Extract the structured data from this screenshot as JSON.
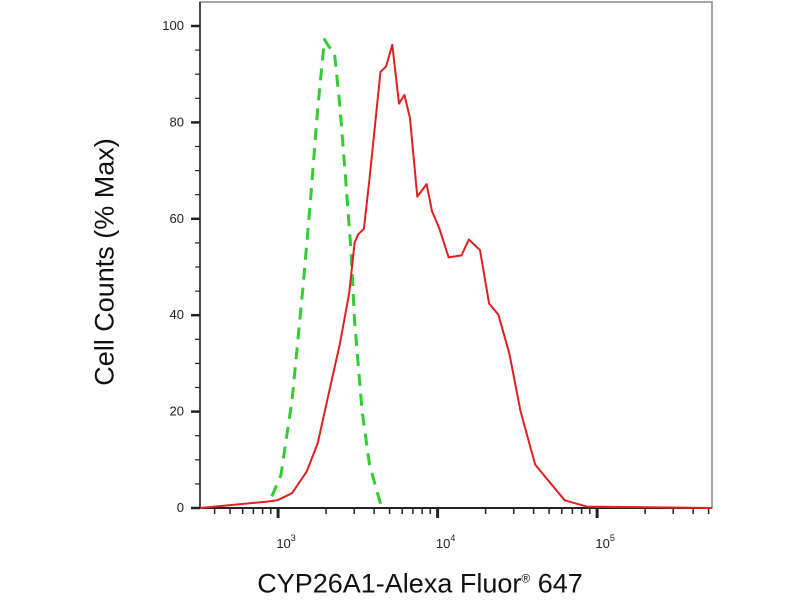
{
  "chart_data": {
    "type": "line",
    "title": "",
    "xlabel_main": "CYP26A1-Alexa Fluor",
    "xlabel_reg": "®",
    "xlabel_tail": " 647",
    "ylabel": "Cell Counts (% Max)",
    "x_scale": "log",
    "xlim": [
      324,
      525000
    ],
    "ylim": [
      0,
      100
    ],
    "y_ticks": [
      "0",
      "20",
      "40",
      "60",
      "80",
      "100"
    ],
    "x_ticks": [
      {
        "base": "10",
        "exp": "3",
        "value": 1000
      },
      {
        "base": "10",
        "exp": "4",
        "value": 10000
      },
      {
        "base": "10",
        "exp": "5",
        "value": 100000
      }
    ],
    "grid": false,
    "legend": "none",
    "series": [
      {
        "style": "dashed",
        "color": "#33cc33",
        "x": [
          914,
          1042,
          1225,
          1435,
          1596,
          1774,
          1954,
          2084,
          2254,
          2443,
          2649,
          2864,
          3020,
          3365,
          3741,
          4385
        ],
        "y": [
          2.4,
          6.8,
          22.4,
          46.1,
          63.9,
          83.1,
          97.2,
          95.7,
          94.6,
          83.1,
          68.3,
          53.5,
          38.7,
          20.1,
          9.0,
          0.9
        ]
      },
      {
        "style": "solid",
        "color": "#e02020",
        "x": [
          324,
          843,
          989,
          1225,
          1514,
          1774,
          2084,
          2443,
          2793,
          3020,
          3184,
          3451,
          3741,
          4385,
          4753,
          5200,
          5728,
          6194,
          6714,
          7464,
          8531,
          9226,
          10280,
          11720,
          14130,
          15700,
          18450,
          21040,
          24040,
          28180,
          33110,
          40930,
          50580,
          62660,
          86100,
          525000
        ],
        "y": [
          0,
          1.3,
          1.6,
          3.1,
          7.6,
          13.5,
          23.9,
          34.2,
          44.6,
          55.0,
          56.8,
          57.9,
          68.3,
          90.5,
          91.6,
          96.1,
          83.9,
          85.7,
          80.9,
          64.6,
          67.2,
          61.6,
          57.9,
          52.0,
          52.4,
          55.7,
          53.5,
          42.4,
          40.1,
          32.0,
          20.1,
          9.0,
          5.3,
          1.6,
          0.3,
          0
        ]
      }
    ]
  }
}
